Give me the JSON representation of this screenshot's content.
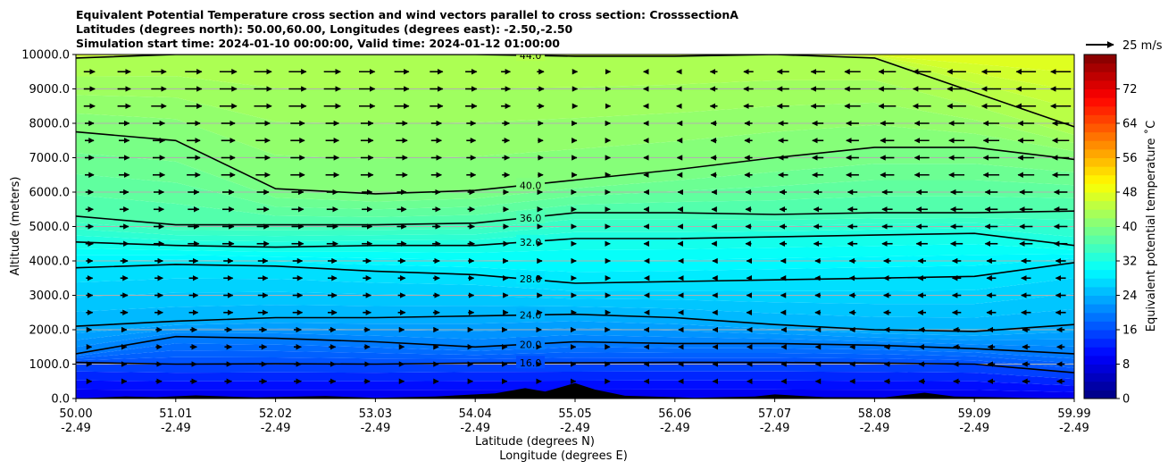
{
  "header": {
    "title_line1": "Equivalent Potential Temperature cross section and wind vectors parallel to cross section: CrosssectionA",
    "title_line2": "Latitudes (degrees north): 50.00,60.00, Longitudes (degrees east): -2.50,-2.50",
    "title_line3": "Simulation start time: 2024-01-10 00:00:00, Valid time: 2024-01-12 01:00:00"
  },
  "legend": {
    "wind_key_label": "25 m/s"
  },
  "chart_data": {
    "type": "heatmap",
    "xlabel": "Latitude (degrees N)",
    "xlabel2": "Longitude (degrees E)",
    "ylabel": "Altitude (meters)",
    "colorbar_label": "Equivalent potential temperature ˚C",
    "colorbar_ticks": [
      0,
      8,
      16,
      24,
      32,
      40,
      48,
      56,
      64,
      72
    ],
    "colorbar_range": [
      0,
      80
    ],
    "ylim": [
      0,
      10000
    ],
    "y_ticks": [
      "0.0",
      "1000.0",
      "2000.0",
      "3000.0",
      "4000.0",
      "5000.0",
      "6000.0",
      "7000.0",
      "8000.0",
      "9000.0",
      "10000.0"
    ],
    "x_ticks": [
      {
        "lat": "50.00",
        "lon": "-2.49"
      },
      {
        "lat": "51.01",
        "lon": "-2.49"
      },
      {
        "lat": "52.02",
        "lon": "-2.49"
      },
      {
        "lat": "53.03",
        "lon": "-2.49"
      },
      {
        "lat": "54.04",
        "lon": "-2.49"
      },
      {
        "lat": "55.05",
        "lon": "-2.49"
      },
      {
        "lat": "56.06",
        "lon": "-2.49"
      },
      {
        "lat": "57.07",
        "lon": "-2.49"
      },
      {
        "lat": "58.08",
        "lon": "-2.49"
      },
      {
        "lat": "59.09",
        "lon": "-2.49"
      },
      {
        "lat": "59.99",
        "lon": "-2.49"
      }
    ],
    "contours": [
      {
        "label": "16.0",
        "value": 16,
        "altitudes": [
          1050,
          1000,
          1010,
          1000,
          1030,
          1040,
          1050,
          1050,
          1030,
          1000,
          750
        ]
      },
      {
        "label": "20.0",
        "value": 20,
        "altitudes": [
          1300,
          1800,
          1750,
          1650,
          1500,
          1650,
          1600,
          1600,
          1550,
          1450,
          1300
        ]
      },
      {
        "label": "24.0",
        "value": 24,
        "altitudes": [
          2100,
          2250,
          2350,
          2350,
          2400,
          2450,
          2350,
          2150,
          2000,
          1950,
          2150
        ]
      },
      {
        "label": "28.0",
        "value": 28,
        "altitudes": [
          3800,
          3900,
          3850,
          3700,
          3600,
          3350,
          3400,
          3450,
          3500,
          3550,
          3950
        ]
      },
      {
        "label": "32.0",
        "value": 32,
        "altitudes": [
          4550,
          4450,
          4400,
          4450,
          4450,
          4650,
          4650,
          4700,
          4750,
          4800,
          4450
        ]
      },
      {
        "label": "36.0",
        "value": 36,
        "altitudes": [
          5300,
          5050,
          5050,
          5050,
          5100,
          5400,
          5400,
          5350,
          5400,
          5400,
          5450
        ]
      },
      {
        "label": "40.0",
        "value": 40,
        "altitudes": [
          7750,
          7500,
          6100,
          5950,
          6050,
          6350,
          6650,
          7000,
          7300,
          7300,
          6950
        ]
      },
      {
        "label": "44.0",
        "value": 44,
        "altitudes": [
          9900,
          10000,
          10000,
          10000,
          10000,
          9950,
          9950,
          10000,
          9900,
          8900,
          7900
        ]
      }
    ],
    "wind": {
      "key_speed": 25,
      "key_unit": "m/s",
      "altitudes": [
        500,
        1000,
        1500,
        2000,
        2500,
        3000,
        3500,
        4000,
        4500,
        5000,
        5500,
        6000,
        6500,
        7000,
        7500,
        8000,
        8500,
        9000,
        9500
      ],
      "speed_profile": [
        [
          4,
          6,
          7,
          5,
          3,
          1,
          -1,
          -3,
          -5,
          -6,
          -7
        ],
        [
          6,
          8,
          9,
          7,
          5,
          2,
          -1,
          -4,
          -6,
          -8,
          -9
        ],
        [
          7,
          10,
          11,
          9,
          6,
          2,
          -2,
          -6,
          -9,
          -11,
          -12
        ],
        [
          8,
          12,
          13,
          11,
          8,
          3,
          -3,
          -8,
          -12,
          -14,
          -15
        ],
        [
          10,
          15,
          16,
          14,
          10,
          4,
          -4,
          -10,
          -15,
          -17,
          -18
        ]
      ]
    }
  }
}
